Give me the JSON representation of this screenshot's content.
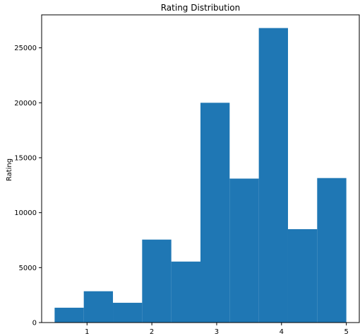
{
  "chart_data": {
    "type": "bar",
    "title": "Rating Distribution",
    "xlabel": "",
    "ylabel": "Rating",
    "bin_edges": [
      0.5,
      0.95,
      1.4,
      1.85,
      2.3,
      2.75,
      3.2,
      3.65,
      4.1,
      4.55,
      5.0
    ],
    "values": [
      1350,
      2850,
      1800,
      7550,
      5550,
      20000,
      13100,
      26800,
      8500,
      13150
    ],
    "xlim": [
      0.3,
      5.2
    ],
    "ylim": [
      0,
      28000
    ],
    "x_ticks": [
      1,
      2,
      3,
      4,
      5
    ],
    "y_ticks": [
      0,
      5000,
      10000,
      15000,
      20000,
      25000
    ],
    "bar_color": "#1f77b4",
    "grid": false,
    "legend": "none"
  }
}
